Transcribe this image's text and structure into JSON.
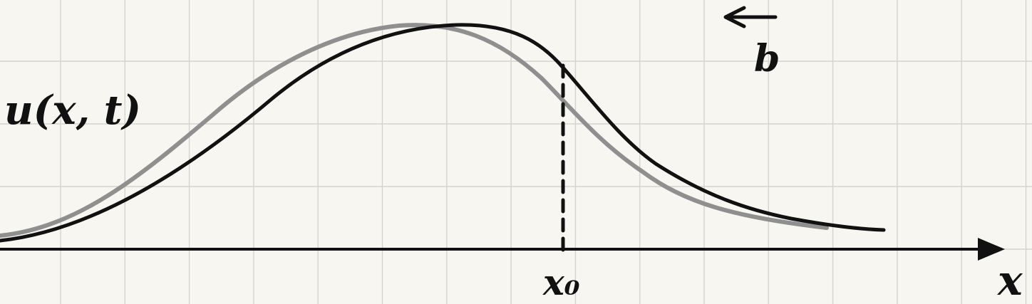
{
  "labels": {
    "function": "u(x, t)",
    "axis": "x",
    "point": "x₀",
    "direction": "b"
  },
  "colors": {
    "background": "#f8f6f1",
    "grid": "#d6d3cd",
    "ink": "#111111",
    "shifted_curve": "#8f8f8f"
  },
  "curves": [
    {
      "role": "current-profile",
      "color": "#111111",
      "style": "solid"
    },
    {
      "role": "shifted-profile",
      "color": "#8f8f8f",
      "style": "solid"
    }
  ],
  "arrow_direction": "left"
}
